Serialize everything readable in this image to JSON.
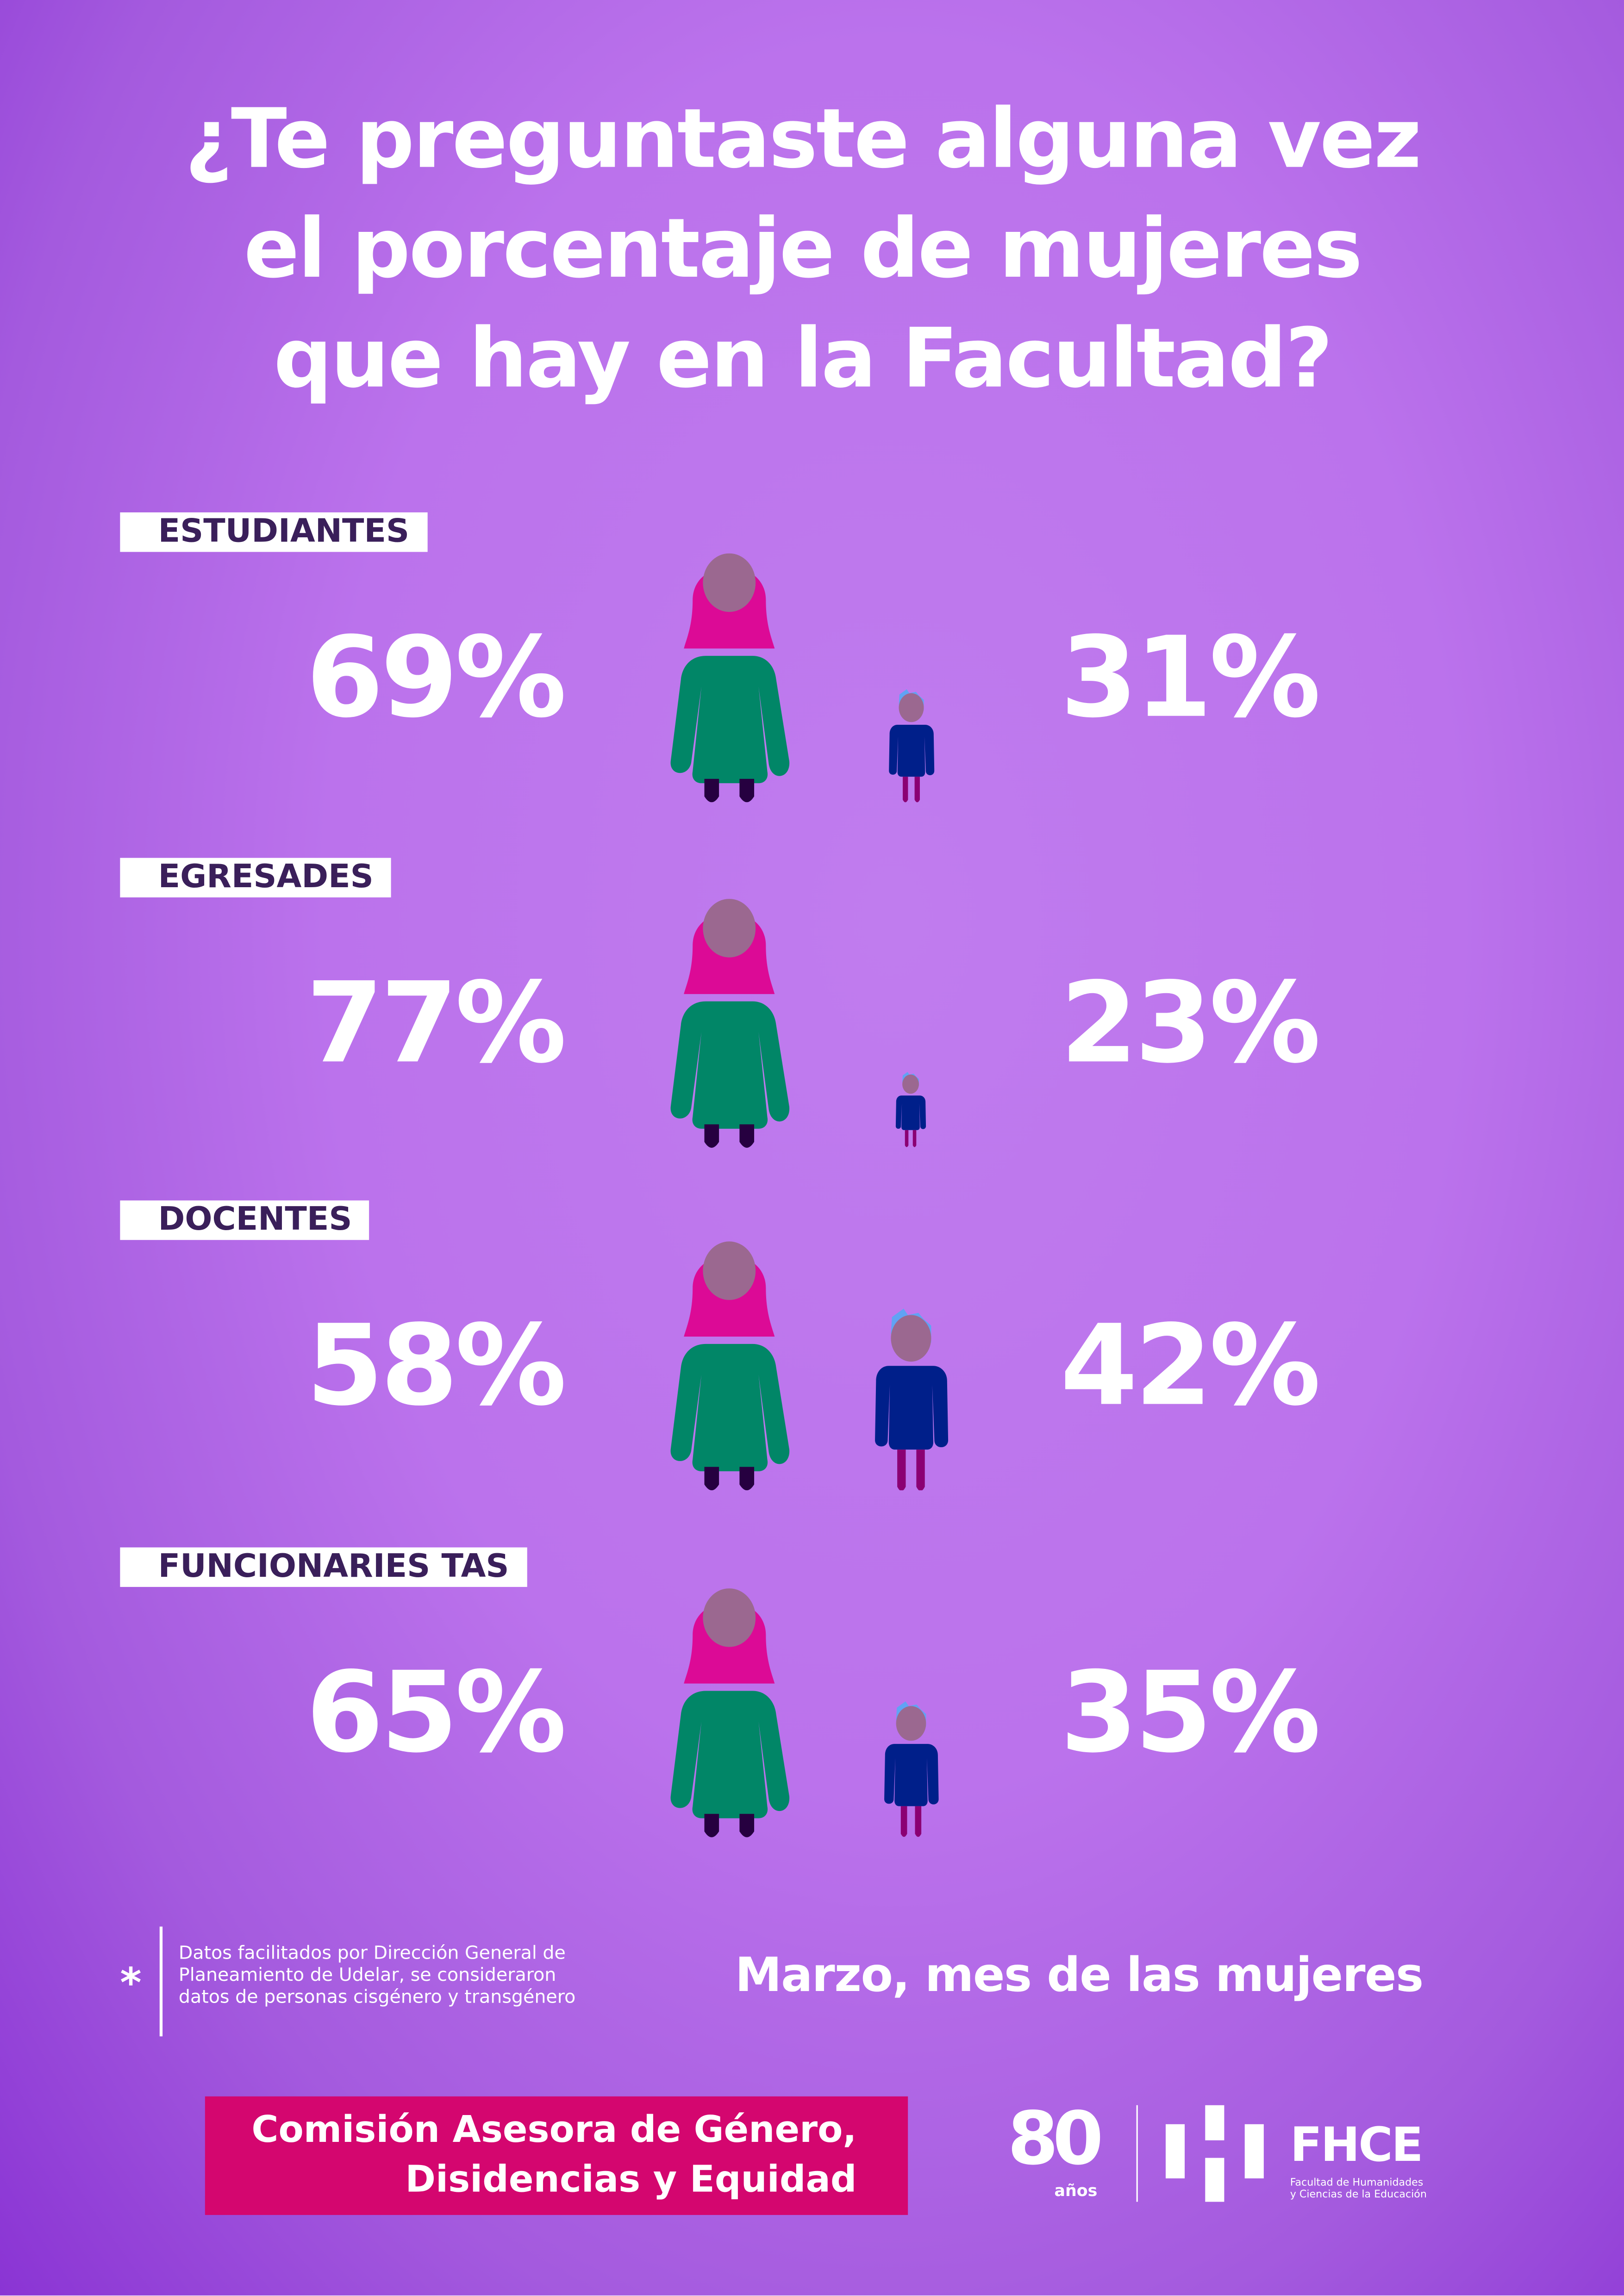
{
  "title": {
    "lines": [
      "¿Te preguntaste alguna vez",
      "el porcentaje de mujeres",
      "que hay en la Facultad?"
    ]
  },
  "colors": {
    "woman_hair": "#dc0a96",
    "face": "#9b6890",
    "woman_body": "#018667",
    "woman_legs": "#260040",
    "man_hair": "#60a3f4",
    "man_body": "#001f8a",
    "man_legs": "#8b0073",
    "label_text": "#3a1f5a",
    "comision_bg": "#d4066f"
  },
  "rows": [
    {
      "label": "ESTUDIANTES",
      "women": "69%",
      "men": "31%",
      "women_value": 69,
      "men_value": 31
    },
    {
      "label": "EGRESADES",
      "women": "77%",
      "men": "23%",
      "women_value": 77,
      "men_value": 23
    },
    {
      "label": "DOCENTES",
      "women": "58%",
      "men": "42%",
      "women_value": 58,
      "men_value": 42
    },
    {
      "label": "FUNCIONARIES TAS",
      "women": "65%",
      "men": "35%",
      "women_value": 65,
      "men_value": 35
    }
  ],
  "footnote": {
    "symbol": "*",
    "lines": [
      "Datos facilitados por Dirección General de",
      "Planeamiento de Udelar, se consideraron",
      "datos de personas cisgénero y transgénero"
    ]
  },
  "motto": "Marzo, mes de las mujeres",
  "comision": {
    "lines": [
      "Comisión Asesora de Género,",
      "Disidencias y Equidad"
    ]
  },
  "logos": {
    "anniversary_number": "80",
    "anniversary_word": "años",
    "fhce": "FHCE",
    "fhce_sub": [
      "Facultad de Humanidades",
      "y Ciencias de la Educación"
    ]
  }
}
